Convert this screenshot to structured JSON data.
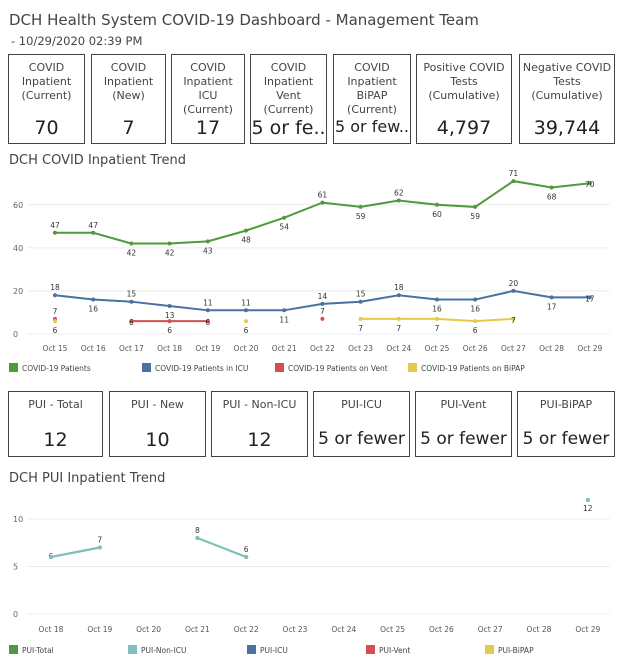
{
  "header": {
    "title": "DCH Health System COVID-19 Dashboard - Management Team",
    "subtitle": "- 10/29/2020 02:39 PM"
  },
  "cards_top": [
    {
      "label": "COVID Inpatient (Current)",
      "value": "70"
    },
    {
      "label": "COVID Inpatient (New)",
      "value": "7"
    },
    {
      "label": "COVID Inpatient ICU (Current)",
      "value": "17"
    },
    {
      "label": "COVID Inpatient Vent (Current)",
      "value": "5 or fe.."
    },
    {
      "label": "COVID Inpatient BiPAP (Current)",
      "value": "5 or few.."
    },
    {
      "label": "Positive COVID Tests (Cumulative)",
      "value": "4,797"
    },
    {
      "label": "Negative COVID Tests (Cumulative)",
      "value": "39,744"
    }
  ],
  "cards_pui": [
    {
      "label": "PUI - Total",
      "value": "12"
    },
    {
      "label": "PUI - New",
      "value": "10"
    },
    {
      "label": "PUI - Non-ICU",
      "value": "12"
    },
    {
      "label": "PUI-ICU",
      "value": "5 or fewer"
    },
    {
      "label": "PUI-Vent",
      "value": "5 or fewer"
    },
    {
      "label": "PUI-BiPAP",
      "value": "5 or fewer"
    }
  ],
  "sections": {
    "inpatient_trend": "DCH COVID Inpatient Trend",
    "pui_trend": "DCH PUI Inpatient Trend"
  },
  "chart_data": [
    {
      "type": "line",
      "title": "DCH COVID Inpatient Trend",
      "x": [
        "Oct 15",
        "Oct 16",
        "Oct 17",
        "Oct 18",
        "Oct 19",
        "Oct 20",
        "Oct 21",
        "Oct 22",
        "Oct 23",
        "Oct 24",
        "Oct 25",
        "Oct 26",
        "Oct 27",
        "Oct 28",
        "Oct 29"
      ],
      "yticks": [
        0,
        20,
        40,
        60
      ],
      "grid": true,
      "legend_position": "bottom",
      "series": [
        {
          "name": "COVID-19 Patients",
          "color": "#4e9a3c",
          "values": [
            47,
            47,
            42,
            42,
            43,
            48,
            54,
            61,
            59,
            62,
            60,
            59,
            71,
            68,
            70
          ]
        },
        {
          "name": "COVID-19 Patients in ICU",
          "color": "#4a72a0",
          "values": [
            18,
            16,
            15,
            13,
            11,
            11,
            11,
            14,
            15,
            18,
            16,
            16,
            20,
            17,
            17
          ]
        },
        {
          "name": "COVID-19 Patients on Vent",
          "color": "#d64e4e",
          "values": [
            7,
            null,
            6,
            6,
            6,
            null,
            null,
            7,
            null,
            null,
            null,
            null,
            null,
            null,
            null
          ]
        },
        {
          "name": "COVID-19 Patients on BiPAP",
          "color": "#e6c94c",
          "values": [
            6,
            null,
            null,
            null,
            null,
            6,
            null,
            null,
            7,
            7,
            7,
            6,
            7,
            null,
            null
          ]
        }
      ]
    },
    {
      "type": "line",
      "title": "DCH PUI Inpatient Trend",
      "x": [
        "Oct 18",
        "Oct 19",
        "Oct 20",
        "Oct 21",
        "Oct 22",
        "Oct 23",
        "Oct 24",
        "Oct 25",
        "Oct 26",
        "Oct 27",
        "Oct 28",
        "Oct 29"
      ],
      "yticks": [
        0,
        5,
        10
      ],
      "grid": true,
      "legend_position": "bottom",
      "series": [
        {
          "name": "PUI-Total",
          "color": "#4e9a3c",
          "values": [
            6,
            7,
            null,
            8,
            6,
            null,
            null,
            null,
            null,
            null,
            null,
            12
          ]
        },
        {
          "name": "PUI-Non-ICU",
          "color": "#7fbfbf",
          "values": [
            6,
            7,
            null,
            8,
            6,
            null,
            null,
            null,
            null,
            null,
            null,
            12
          ]
        },
        {
          "name": "PUI-ICU",
          "color": "#4a72a0",
          "values": [
            null,
            null,
            null,
            null,
            null,
            null,
            null,
            null,
            null,
            null,
            null,
            null
          ]
        },
        {
          "name": "PUI-Vent",
          "color": "#d64e4e",
          "values": [
            null,
            null,
            null,
            null,
            null,
            null,
            null,
            null,
            null,
            null,
            null,
            null
          ]
        },
        {
          "name": "PUI-BiPAP",
          "color": "#e6c94c",
          "values": [
            null,
            null,
            null,
            null,
            null,
            null,
            null,
            null,
            null,
            null,
            null,
            null
          ]
        }
      ]
    }
  ]
}
